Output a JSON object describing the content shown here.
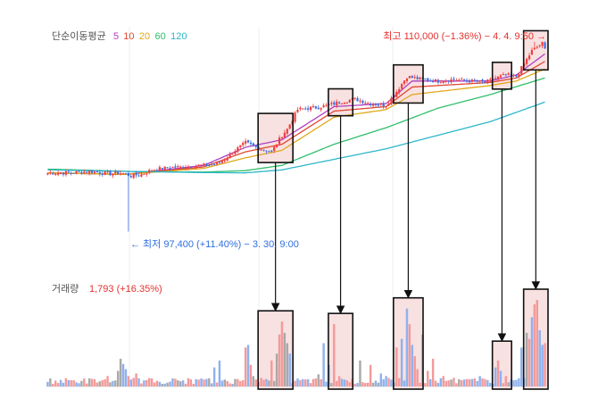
{
  "chart_data": {
    "type": "candlestick",
    "legend": {
      "title": "단순이동평균",
      "periods": [
        {
          "label": "5",
          "color": "#b040c0"
        },
        {
          "label": "10",
          "color": "#e0472f"
        },
        {
          "label": "20",
          "color": "#e0a81c"
        },
        {
          "label": "60",
          "color": "#2fbf6a"
        },
        {
          "label": "120",
          "color": "#2bb7c9"
        }
      ]
    },
    "annotations": {
      "high": "최고 110,000 (−1.36%) − 4. 4. 9:50 →",
      "low": "← 최저 97,400 (+11.40%) − 3. 30. 9:00"
    },
    "price_range": [
      95000,
      111000
    ],
    "high_value": 110000,
    "low_value": 97400,
    "price_path": [
      [
        0,
        101300
      ],
      [
        8,
        101300
      ],
      [
        16,
        101400
      ],
      [
        24,
        101250
      ],
      [
        28,
        101300
      ],
      [
        32,
        101100
      ],
      [
        36,
        101200
      ],
      [
        40,
        101500
      ],
      [
        46,
        101650
      ],
      [
        52,
        101700
      ],
      [
        58,
        101800
      ],
      [
        64,
        101850
      ],
      [
        68,
        102200
      ],
      [
        72,
        102800
      ],
      [
        76,
        103300
      ],
      [
        80,
        103000
      ],
      [
        84,
        102800
      ],
      [
        86,
        102700
      ],
      [
        90,
        103800
      ],
      [
        92,
        104200
      ],
      [
        96,
        105500
      ],
      [
        100,
        105600
      ],
      [
        104,
        105650
      ],
      [
        108,
        105800
      ],
      [
        112,
        106000
      ],
      [
        118,
        106200
      ],
      [
        124,
        105900
      ],
      [
        130,
        105800
      ],
      [
        134,
        106700
      ],
      [
        138,
        107700
      ],
      [
        144,
        107500
      ],
      [
        150,
        107400
      ],
      [
        156,
        107500
      ],
      [
        162,
        107400
      ],
      [
        168,
        107300
      ],
      [
        172,
        107600
      ],
      [
        176,
        107800
      ],
      [
        180,
        107700
      ],
      [
        186,
        109400
      ],
      [
        190,
        109900
      ],
      [
        191,
        109500
      ]
    ],
    "ma_series": [
      {
        "period": "5",
        "color": "#b040c0",
        "points": [
          [
            0,
            101300
          ],
          [
            30,
            101200
          ],
          [
            60,
            101800
          ],
          [
            76,
            103000
          ],
          [
            90,
            103500
          ],
          [
            110,
            105700
          ],
          [
            130,
            105900
          ],
          [
            140,
            107400
          ],
          [
            170,
            107400
          ],
          [
            180,
            107800
          ],
          [
            191,
            109200
          ]
        ]
      },
      {
        "period": "10",
        "color": "#e0472f",
        "points": [
          [
            0,
            101300
          ],
          [
            30,
            101200
          ],
          [
            60,
            101700
          ],
          [
            76,
            102700
          ],
          [
            90,
            103200
          ],
          [
            110,
            105400
          ],
          [
            130,
            105700
          ],
          [
            140,
            107000
          ],
          [
            170,
            107300
          ],
          [
            180,
            107600
          ],
          [
            191,
            108700
          ]
        ]
      },
      {
        "period": "20",
        "color": "#e0a81c",
        "points": [
          [
            0,
            101300
          ],
          [
            30,
            101200
          ],
          [
            60,
            101600
          ],
          [
            76,
            102300
          ],
          [
            90,
            102800
          ],
          [
            110,
            105000
          ],
          [
            130,
            105500
          ],
          [
            140,
            106500
          ],
          [
            170,
            107100
          ],
          [
            180,
            107400
          ],
          [
            191,
            108200
          ]
        ]
      },
      {
        "period": "60",
        "color": "#2fbf6a",
        "points": [
          [
            0,
            101550
          ],
          [
            30,
            101400
          ],
          [
            60,
            101350
          ],
          [
            76,
            101450
          ],
          [
            90,
            101800
          ],
          [
            110,
            103200
          ],
          [
            130,
            104300
          ],
          [
            150,
            105600
          ],
          [
            170,
            106500
          ],
          [
            191,
            107600
          ]
        ]
      },
      {
        "period": "120",
        "color": "#2bb7c9",
        "points": [
          [
            0,
            101500
          ],
          [
            30,
            101400
          ],
          [
            60,
            101320
          ],
          [
            76,
            101300
          ],
          [
            90,
            101500
          ],
          [
            110,
            102200
          ],
          [
            130,
            102900
          ],
          [
            150,
            103800
          ],
          [
            170,
            104700
          ],
          [
            191,
            106000
          ]
        ]
      }
    ],
    "volume": {
      "title": "거래량",
      "value_text": "1,793 (+16.35%)",
      "spikes": [
        [
          23,
          0.12
        ],
        [
          27,
          0.18
        ],
        [
          28,
          0.32
        ],
        [
          29,
          0.26
        ],
        [
          30,
          0.2
        ],
        [
          31,
          0.12
        ],
        [
          32,
          0.08
        ],
        [
          34,
          0.15
        ],
        [
          60,
          0.08
        ],
        [
          64,
          0.22
        ],
        [
          66,
          0.3
        ],
        [
          68,
          0.08
        ],
        [
          76,
          0.45
        ],
        [
          77,
          0.48
        ],
        [
          78,
          0.25
        ],
        [
          79,
          0.12
        ],
        [
          80,
          0.08
        ],
        [
          82,
          0.1
        ],
        [
          86,
          0.3
        ],
        [
          88,
          0.38
        ],
        [
          89,
          0.6
        ],
        [
          90,
          0.75
        ],
        [
          91,
          0.62
        ],
        [
          92,
          0.5
        ],
        [
          93,
          0.38
        ],
        [
          104,
          0.14
        ],
        [
          106,
          0.5
        ],
        [
          108,
          0.25
        ],
        [
          110,
          0.72
        ],
        [
          112,
          0.12
        ],
        [
          114,
          0.08
        ],
        [
          120,
          0.3
        ],
        [
          124,
          0.25
        ],
        [
          128,
          0.15
        ],
        [
          130,
          0.12
        ],
        [
          132,
          0.08
        ],
        [
          134,
          0.45
        ],
        [
          136,
          0.55
        ],
        [
          138,
          0.9
        ],
        [
          139,
          0.72
        ],
        [
          140,
          0.48
        ],
        [
          141,
          0.35
        ],
        [
          142,
          0.2
        ],
        [
          144,
          0.6
        ],
        [
          146,
          0.18
        ],
        [
          148,
          0.32
        ],
        [
          152,
          0.12
        ],
        [
          156,
          0.1
        ],
        [
          160,
          0.08
        ],
        [
          166,
          0.12
        ],
        [
          172,
          0.22
        ],
        [
          173,
          0.3
        ],
        [
          174,
          0.18
        ],
        [
          176,
          0.12
        ],
        [
          178,
          0.08
        ],
        [
          182,
          0.45
        ],
        [
          184,
          0.62
        ],
        [
          185,
          0.55
        ],
        [
          186,
          0.8
        ],
        [
          187,
          0.95
        ],
        [
          188,
          1.0
        ],
        [
          189,
          0.65
        ],
        [
          190,
          0.48
        ],
        [
          191,
          0.5
        ]
      ]
    },
    "highlight_ranges": [
      {
        "start": 82,
        "end": 93
      },
      {
        "start": 109,
        "end": 116
      },
      {
        "start": 134,
        "end": 143
      },
      {
        "start": 172,
        "end": 177
      },
      {
        "start": 184,
        "end": 191
      }
    ],
    "colors": {
      "up": "#f03e3e",
      "down": "#3f6fe0",
      "volume_up": "#f49a9a",
      "volume_down": "#8fb2ee",
      "volume_neutral": "#a9a9a9",
      "highlight_fill": "#f8e1e1",
      "high_label": "#e4312e",
      "low_label": "#2f6fe0",
      "legend_title": "#555555",
      "volume_title": "#555555",
      "volume_value": "#e4312e"
    }
  }
}
